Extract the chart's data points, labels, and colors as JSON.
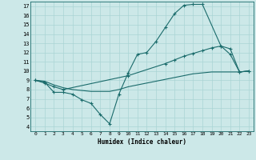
{
  "xlabel": "Humidex (Indice chaleur)",
  "background_color": "#cce8e8",
  "line_color": "#1a6b6b",
  "grid_color": "#aad4d4",
  "xlim": [
    -0.5,
    23.5
  ],
  "ylim": [
    3.5,
    17.5
  ],
  "yticks": [
    4,
    5,
    6,
    7,
    8,
    9,
    10,
    11,
    12,
    13,
    14,
    15,
    16,
    17
  ],
  "xticks": [
    0,
    1,
    2,
    3,
    4,
    5,
    6,
    7,
    8,
    9,
    10,
    11,
    12,
    13,
    14,
    15,
    16,
    17,
    18,
    19,
    20,
    21,
    22,
    23
  ],
  "line1_x": [
    0,
    1,
    2,
    3,
    4,
    5,
    6,
    7,
    8,
    9,
    10,
    11,
    12,
    13,
    14,
    15,
    16,
    17,
    18,
    20,
    21,
    22,
    23
  ],
  "line1_y": [
    9.0,
    8.8,
    7.7,
    7.7,
    7.5,
    6.9,
    6.5,
    5.3,
    4.3,
    7.5,
    9.8,
    11.8,
    12.0,
    13.2,
    14.7,
    16.2,
    17.1,
    17.2,
    17.2,
    12.7,
    11.8,
    9.9,
    10.0
  ],
  "line2_x": [
    0,
    1,
    2,
    3,
    10,
    14,
    15,
    16,
    17,
    18,
    19,
    20,
    21,
    22,
    23
  ],
  "line2_y": [
    9.0,
    8.7,
    8.3,
    8.0,
    9.5,
    10.8,
    11.2,
    11.6,
    11.9,
    12.2,
    12.5,
    12.7,
    12.4,
    9.9,
    10.0
  ],
  "line3_x": [
    0,
    1,
    2,
    3,
    4,
    5,
    6,
    7,
    8,
    9,
    10,
    11,
    12,
    13,
    14,
    15,
    16,
    17,
    18,
    19,
    20,
    21,
    22,
    23
  ],
  "line3_y": [
    9.0,
    8.9,
    8.5,
    8.2,
    8.0,
    7.9,
    7.8,
    7.8,
    7.8,
    8.0,
    8.3,
    8.5,
    8.7,
    8.9,
    9.1,
    9.3,
    9.5,
    9.7,
    9.8,
    9.9,
    9.9,
    9.9,
    9.9,
    10.0
  ]
}
